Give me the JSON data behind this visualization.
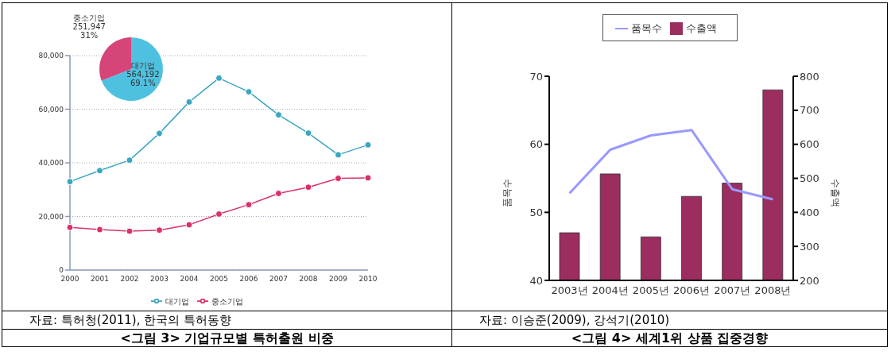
{
  "chart_data": [
    {
      "type": "line",
      "title": "<그림 3> 기업규모별 특허출원 비중",
      "annotations": [
        "자료: 특허청(2011), 한국의 특허동향"
      ],
      "categories": [
        "2000",
        "2001",
        "2002",
        "2003",
        "2004",
        "2005",
        "2006",
        "2007",
        "2008",
        "2009",
        "2010"
      ],
      "series": [
        {
          "name": "대기업",
          "color": "#3aa6c0",
          "values": [
            33000,
            37100,
            41000,
            51000,
            62700,
            71600,
            66500,
            57900,
            51100,
            43000,
            46700
          ]
        },
        {
          "name": "중소기업",
          "color": "#d9306e",
          "values": [
            15900,
            15100,
            14500,
            14900,
            16900,
            20900,
            24400,
            28600,
            30900,
            34200,
            34400
          ]
        }
      ],
      "ylim": [
        0,
        80000
      ],
      "yticks": [
        0,
        {
          "value": 20000,
          "label": "20,000"
        },
        {
          "value": 40000,
          "label": "40,000"
        },
        {
          "value": 60000,
          "label": "60,000"
        },
        {
          "value": 80000,
          "label": "80,000"
        }
      ],
      "grid": "y",
      "legend": "bottom",
      "marker": "circle"
    },
    {
      "type": "pie",
      "categories": [
        "대기업",
        "중소기업"
      ],
      "values": [
        564192,
        251947
      ],
      "colors": [
        "#4fc1e0",
        "#d6457a"
      ],
      "value_labels": [
        "564,192\n69.1%",
        "251,947\n31%"
      ]
    },
    {
      "type": "bar",
      "title": "<그림 4> 세계1위 상품 집중경향",
      "annotations": [
        "자료: 이승준(2009), 강석기(2010)"
      ],
      "categories": [
        "2003년",
        "2004년",
        "2005년",
        "2006년",
        "2007년",
        "2008년"
      ],
      "ylabel": "품목수",
      "y2label": "수출액",
      "series": [
        {
          "name": "품목수",
          "type": "line",
          "color": "#9999ff",
          "values": [
            52.8,
            59.2,
            61.3,
            62.1,
            53.4,
            51.9
          ]
        },
        {
          "name": "수출액",
          "type": "bar",
          "axis": "y2",
          "color": "#9b2d5f",
          "values": [
            340,
            513,
            328,
            447,
            486,
            760
          ]
        }
      ],
      "ylim": [
        40,
        70
      ],
      "yticks": [
        40,
        50,
        60,
        70
      ],
      "y2lim": [
        200,
        800
      ],
      "y2ticks": [
        200,
        300,
        400,
        500,
        600,
        700,
        800
      ],
      "legend": "top",
      "marker": "none"
    }
  ]
}
